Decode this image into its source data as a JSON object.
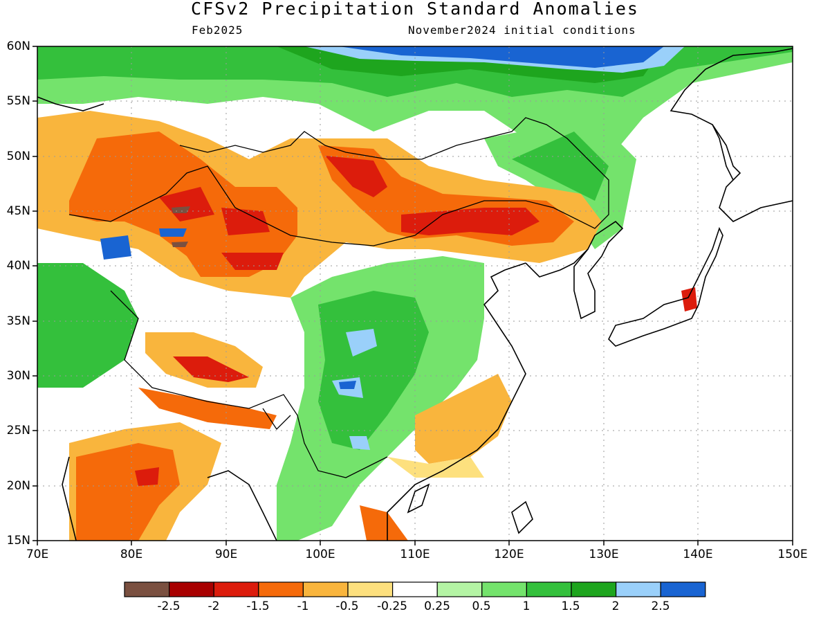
{
  "title": "CFSv2 Precipitation Standard Anomalies",
  "valid_month": "Feb2025",
  "initial_conditions": "November2024 initial conditions",
  "lat_labels": [
    "60N",
    "55N",
    "50N",
    "45N",
    "40N",
    "35N",
    "30N",
    "25N",
    "20N",
    "15N"
  ],
  "lon_labels": [
    "70E",
    "80E",
    "90E",
    "100E",
    "110E",
    "120E",
    "130E",
    "140E",
    "150E"
  ],
  "map_extent": {
    "lon": [
      70,
      150
    ],
    "lat": [
      15,
      60
    ]
  },
  "colorbar": {
    "labels": [
      "-2.5",
      "-2",
      "-1.5",
      "-1",
      "-0.5",
      "-0.25",
      "0.25",
      "0.5",
      "1",
      "1.5",
      "2",
      "2.5"
    ],
    "colors": [
      "#7a5040",
      "#a80000",
      "#dc1c0c",
      "#f56a0a",
      "#f9b53d",
      "#fde07e",
      "#ffffff",
      "#b4f4a4",
      "#74e36c",
      "#34c03c",
      "#1ea51e",
      "#9ad0fa",
      "#1964d2"
    ]
  }
}
